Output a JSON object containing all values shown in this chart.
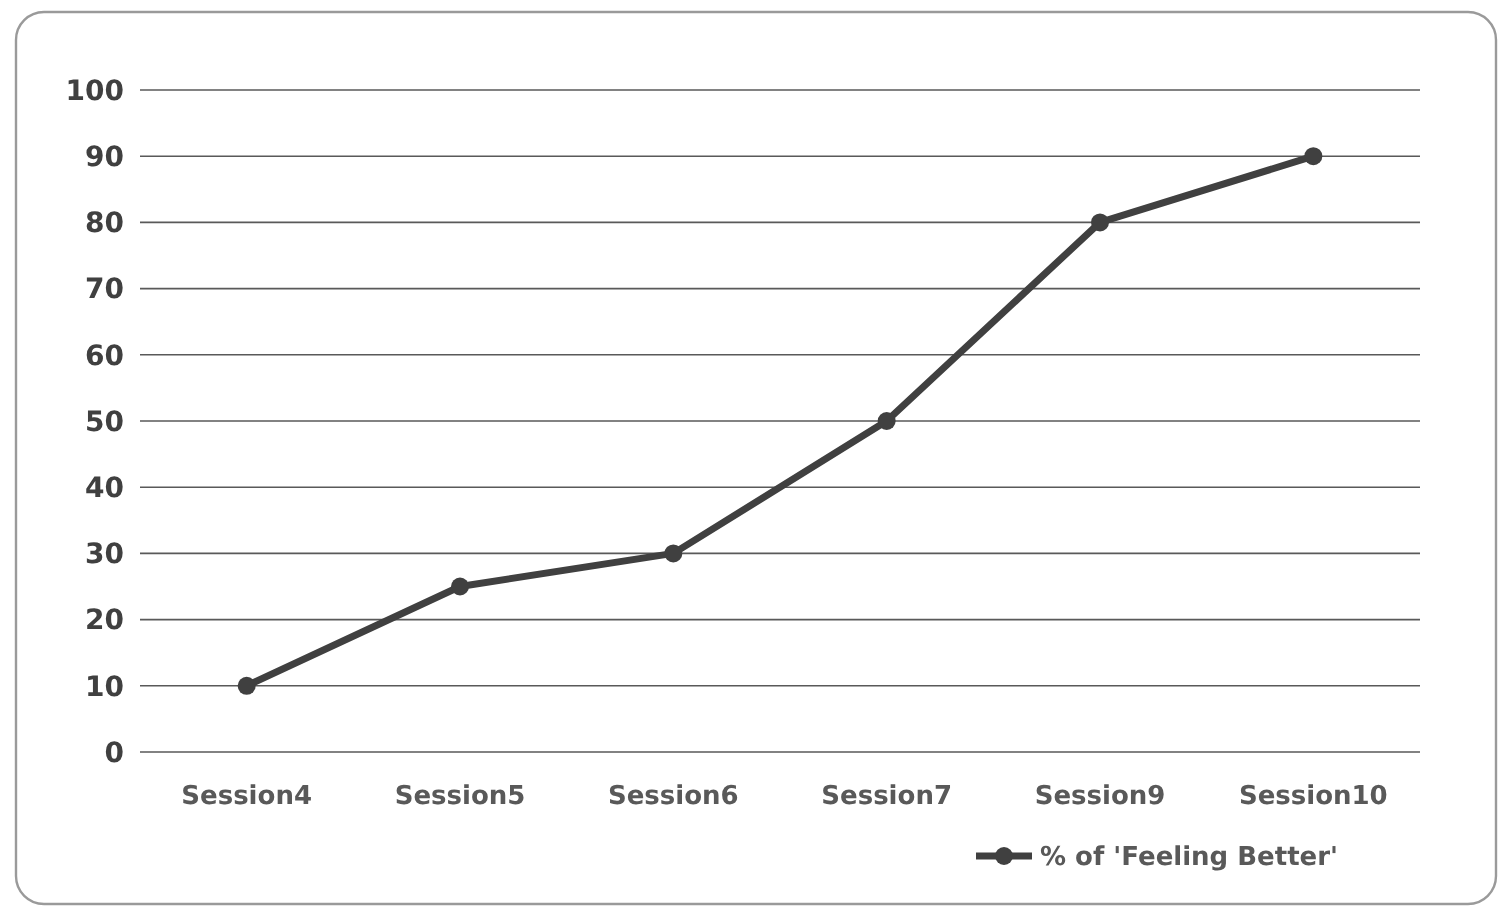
{
  "chart_data": {
    "type": "line",
    "categories": [
      "Session4",
      "Session5",
      "Session6",
      "Session7",
      "Session9",
      "Session10"
    ],
    "series": [
      {
        "name": "% of 'Feeling Better'",
        "color": "#404040",
        "values": [
          10,
          25,
          30,
          50,
          80,
          90
        ]
      }
    ],
    "ylim": [
      0,
      100
    ],
    "yticks": [
      0,
      10,
      20,
      30,
      40,
      50,
      60,
      70,
      80,
      90,
      100
    ],
    "grid": "y",
    "legend": "bottom right",
    "marker": "circle",
    "line_style": "solid"
  }
}
